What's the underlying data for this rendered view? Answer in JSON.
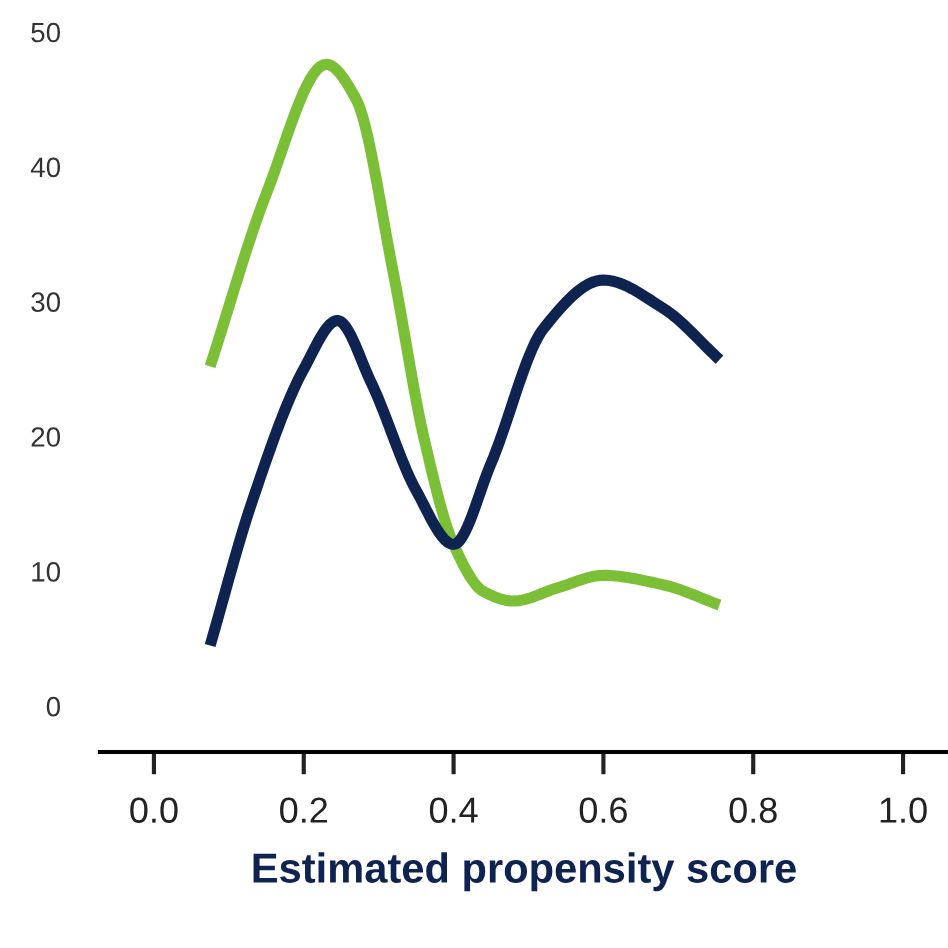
{
  "chart_data": {
    "type": "line",
    "xlabel": "Estimated propensity score",
    "xlim": [
      -0.072,
      1.06
    ],
    "ylim": [
      -3.4,
      50
    ],
    "xticks": [
      {
        "value": 0,
        "label": "0.0"
      },
      {
        "value": 0.2,
        "label": "0.2"
      },
      {
        "value": 0.4,
        "label": "0.4"
      },
      {
        "value": 0.6,
        "label": "0.6"
      },
      {
        "value": 0.8,
        "label": "0.8"
      },
      {
        "value": 1.0,
        "label": "1.0"
      }
    ],
    "yticks": [
      0,
      10,
      20,
      30,
      40,
      50
    ],
    "grid": false,
    "marker": "none",
    "line_style": "solid",
    "series": [
      {
        "color": "#7abf35",
        "x": [
          0.075,
          0.15,
          0.23,
          0.27,
          0.32,
          0.36,
          0.4,
          0.44,
          0.48,
          0.54,
          0.6,
          0.68,
          0.755
        ],
        "values": [
          25.2,
          38,
          47.6,
          45,
          32,
          20,
          12,
          8.5,
          7.8,
          8.8,
          9.7,
          9,
          7.5
        ]
      },
      {
        "color": "#0f2350",
        "x": [
          0.075,
          0.13,
          0.2,
          0.245,
          0.29,
          0.35,
          0.4,
          0.45,
          0.52,
          0.6,
          0.68,
          0.755
        ],
        "values": [
          4.5,
          15,
          25,
          28.6,
          24,
          16,
          12,
          18,
          28,
          31.6,
          29.5,
          25.7
        ]
      }
    ]
  }
}
